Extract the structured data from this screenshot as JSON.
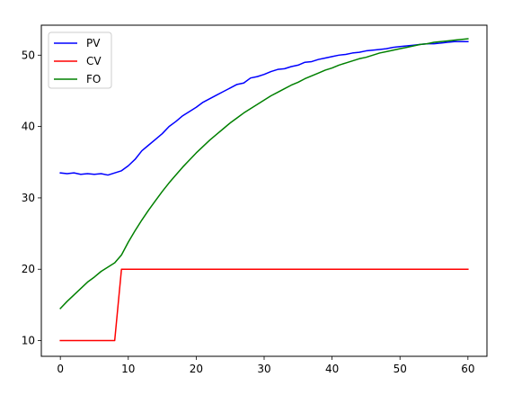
{
  "chart_data": {
    "type": "line",
    "title": "",
    "xlabel": "",
    "ylabel": "",
    "xlim": [
      -2.8,
      62.8
    ],
    "ylim": [
      7.8,
      54.2
    ],
    "xticks": [
      0,
      10,
      20,
      30,
      40,
      50,
      60
    ],
    "yticks": [
      10,
      20,
      30,
      40,
      50
    ],
    "grid": false,
    "legend": {
      "placement": "top-left",
      "entries": [
        "PV",
        "CV",
        "FO"
      ]
    },
    "series": [
      {
        "name": "PV",
        "color": "#0000ff",
        "x": [
          0,
          1,
          2,
          3,
          4,
          5,
          6,
          7,
          8,
          9,
          10,
          11,
          12,
          13,
          14,
          15,
          16,
          17,
          18,
          19,
          20,
          21,
          22,
          23,
          24,
          25,
          26,
          27,
          28,
          29,
          30,
          31,
          32,
          33,
          34,
          35,
          36,
          37,
          38,
          39,
          40,
          41,
          42,
          43,
          44,
          45,
          46,
          47,
          48,
          49,
          50,
          51,
          52,
          53,
          54,
          55,
          56,
          57,
          58,
          59,
          60
        ],
        "y": [
          33.5,
          33.4,
          33.5,
          33.3,
          33.4,
          33.3,
          33.4,
          33.2,
          33.5,
          33.8,
          34.5,
          35.4,
          36.6,
          37.4,
          38.2,
          39.0,
          40.0,
          40.7,
          41.5,
          42.1,
          42.7,
          43.4,
          43.9,
          44.4,
          44.9,
          45.4,
          45.9,
          46.1,
          46.8,
          47.0,
          47.3,
          47.7,
          48.0,
          48.1,
          48.4,
          48.6,
          49.0,
          49.1,
          49.4,
          49.6,
          49.8,
          50.0,
          50.1,
          50.3,
          50.4,
          50.6,
          50.7,
          50.8,
          50.9,
          51.1,
          51.2,
          51.3,
          51.4,
          51.5,
          51.6,
          51.6,
          51.7,
          51.8,
          51.9,
          51.9,
          51.9
        ]
      },
      {
        "name": "CV",
        "color": "#ff0000",
        "x": [
          0,
          8,
          9,
          60
        ],
        "y": [
          10,
          10,
          20,
          20
        ]
      },
      {
        "name": "FO",
        "color": "#008000",
        "x": [
          0,
          1,
          2,
          3,
          4,
          5,
          6,
          7,
          8,
          9,
          10,
          11,
          12,
          13,
          14,
          15,
          16,
          17,
          18,
          19,
          20,
          21,
          22,
          23,
          24,
          25,
          26,
          27,
          28,
          29,
          30,
          31,
          32,
          33,
          34,
          35,
          36,
          37,
          38,
          39,
          40,
          41,
          42,
          43,
          44,
          45,
          46,
          47,
          48,
          49,
          50,
          51,
          52,
          53,
          54,
          55,
          56,
          57,
          58,
          59,
          60
        ],
        "y": [
          14.5,
          15.5,
          16.4,
          17.3,
          18.2,
          18.9,
          19.7,
          20.3,
          20.9,
          22.0,
          23.8,
          25.4,
          26.9,
          28.3,
          29.6,
          30.9,
          32.1,
          33.2,
          34.3,
          35.3,
          36.3,
          37.2,
          38.1,
          38.9,
          39.7,
          40.5,
          41.2,
          41.9,
          42.5,
          43.1,
          43.7,
          44.3,
          44.8,
          45.3,
          45.8,
          46.2,
          46.7,
          47.1,
          47.5,
          47.9,
          48.2,
          48.6,
          48.9,
          49.2,
          49.5,
          49.7,
          50.0,
          50.3,
          50.5,
          50.7,
          50.9,
          51.1,
          51.3,
          51.5,
          51.6,
          51.8,
          51.9,
          52.0,
          52.1,
          52.2,
          52.3
        ]
      }
    ]
  }
}
